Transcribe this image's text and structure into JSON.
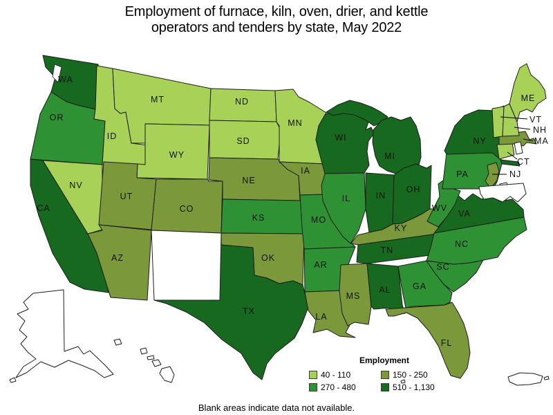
{
  "title": {
    "line1": "Employment of furnace, kiln, oven, drier, and kettle",
    "line2": "operators and tenders by state, May 2022"
  },
  "legend": {
    "title": "Employment",
    "bins": [
      {
        "label": "40 - 110",
        "color": "#a7d157"
      },
      {
        "label": "150 - 250",
        "color": "#7b983b"
      },
      {
        "label": "270 - 480",
        "color": "#2e9134"
      },
      {
        "label": "510 - 1,130",
        "color": "#17691f"
      }
    ]
  },
  "footer": "Blank areas indicate data not available.",
  "chart_data": {
    "type": "heatmap",
    "subtype": "choropleth-us-states",
    "title": "Employment of furnace, kiln, oven, drier, and kettle operators and tenders by state, May 2022",
    "legend_title": "Employment",
    "legend_position": "bottom-right",
    "bins": [
      {
        "range": "40 - 110",
        "color": "#a7d157",
        "states": [
          "MT",
          "ID",
          "WY",
          "NV",
          "ND",
          "SD",
          "MN",
          "ME",
          "VT",
          "NH",
          "CT"
        ]
      },
      {
        "range": "150 - 250",
        "color": "#7b983b",
        "states": [
          "UT",
          "AZ",
          "CO",
          "NE",
          "IA",
          "OK",
          "LA",
          "MS",
          "KY",
          "MA",
          "NJ",
          "FL"
        ]
      },
      {
        "range": "270 - 480",
        "color": "#2e9134",
        "states": [
          "OR",
          "KS",
          "MO",
          "IL",
          "AR",
          "WV",
          "PA",
          "NC",
          "SC",
          "GA"
        ]
      },
      {
        "range": "510 - 1,130",
        "color": "#17691f",
        "states": [
          "WA",
          "CA",
          "TX",
          "WI",
          "MI",
          "IN",
          "OH",
          "NY",
          "VA",
          "TN",
          "AL"
        ]
      }
    ],
    "no_data": [
      "AK",
      "HI",
      "NM",
      "RI",
      "DE",
      "MD",
      "PR"
    ],
    "note": "Blank areas indicate data not available."
  }
}
